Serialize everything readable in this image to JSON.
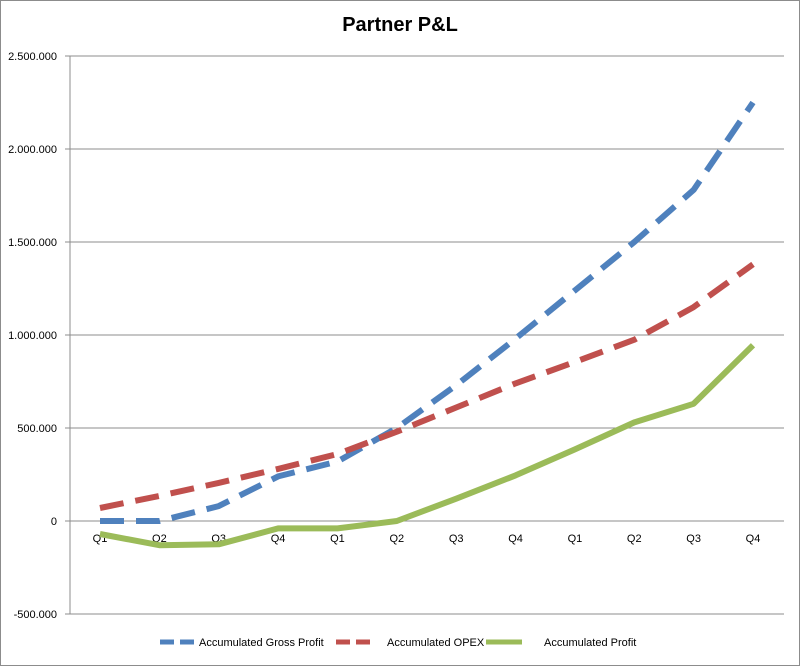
{
  "chart_data": {
    "type": "line",
    "title": "Partner P&L",
    "categories": [
      "Q1",
      "Q2",
      "Q3",
      "Q4",
      "Q1",
      "Q2",
      "Q3",
      "Q4",
      "Q1",
      "Q2",
      "Q3",
      "Q4"
    ],
    "y_ticks": [
      "-500.000",
      "0",
      "500.000",
      "1.000.000",
      "1.500.000",
      "2.000.000",
      "2.500.000"
    ],
    "y_tick_values": [
      -500000,
      0,
      500000,
      1000000,
      1500000,
      2000000,
      2500000
    ],
    "ylim": [
      -500000,
      2500000
    ],
    "grid": "horizontal",
    "legend_position": "bottom",
    "series": [
      {
        "name": "Accumulated Gross Profit",
        "color": "#4f81bd",
        "dash": "dashed",
        "values": [
          0,
          0,
          80000,
          240000,
          320000,
          500000,
          730000,
          980000,
          1240000,
          1500000,
          1780000,
          2250000
        ]
      },
      {
        "name": "Accumulated OPEX",
        "color": "#c0504d",
        "dash": "dashed",
        "values": [
          70000,
          135000,
          205000,
          280000,
          360000,
          480000,
          610000,
          740000,
          855000,
          975000,
          1150000,
          1380000
        ]
      },
      {
        "name": "Accumulated Profit",
        "color": "#9bbb59",
        "dash": "solid",
        "values": [
          -70000,
          -130000,
          -125000,
          -40000,
          -40000,
          0,
          120000,
          245000,
          385000,
          530000,
          630000,
          945000
        ]
      }
    ]
  }
}
